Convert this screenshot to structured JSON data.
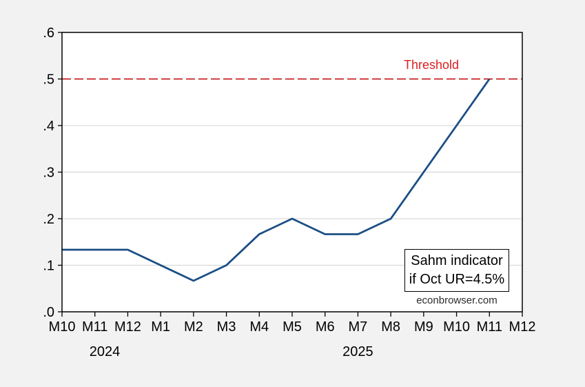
{
  "chart_data": {
    "type": "line",
    "title": "",
    "xlabel": "",
    "ylabel": "",
    "x_tick_labels": [
      "M10",
      "M11",
      "M12",
      "M1",
      "M2",
      "M3",
      "M4",
      "M5",
      "M6",
      "M7",
      "M8",
      "M9",
      "M10",
      "M11",
      "M12"
    ],
    "x_year_labels": [
      {
        "label": "2024",
        "tick_position": 1.3
      },
      {
        "label": "2025",
        "tick_position": 9.0
      }
    ],
    "y_tick_values": [
      0.0,
      0.1,
      0.2,
      0.3,
      0.4,
      0.5,
      0.6
    ],
    "y_tick_labels": [
      ".0",
      ".1",
      ".2",
      ".3",
      ".4",
      ".5",
      ".6"
    ],
    "ylim": [
      0.0,
      0.6
    ],
    "grid": "horizontal-light-gray",
    "legend_position": "inside-bottom-right",
    "series": [
      {
        "name": "Sahm indicator if Oct UR=4.5%",
        "color": "#1a4e85",
        "values": [
          0.1333,
          0.1333,
          0.1333,
          0.1,
          0.0667,
          0.1,
          0.1667,
          0.2,
          0.1667,
          0.1667,
          0.2,
          0.3,
          0.4,
          0.5,
          null
        ]
      }
    ],
    "threshold": {
      "value": 0.5,
      "label": "Threshold",
      "line_color": "#c00000",
      "text_color": "#d92020",
      "line_style": "dashed"
    },
    "legend": {
      "lines": [
        "Sahm indicator",
        "if Oct UR=4.5%"
      ]
    },
    "watermark": "econbrowser.com"
  },
  "colors": {
    "outer_background": "#f2f2f2",
    "plot_background": "#ffffff",
    "gridline": "#d9d9d9",
    "axis": "#000000",
    "series_line": "#1a4e85",
    "threshold_line": "#c00000"
  }
}
